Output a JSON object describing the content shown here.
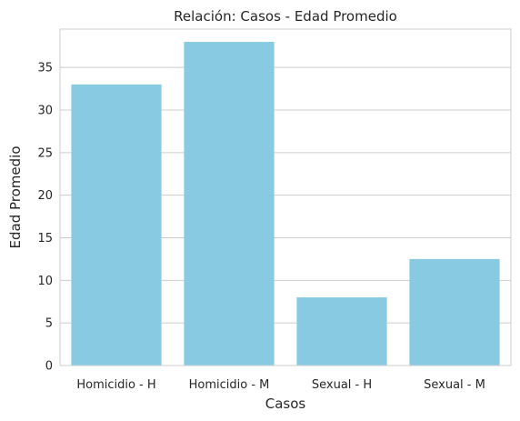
{
  "chart_data": {
    "type": "bar",
    "title": "Relación: Casos - Edad Promedio",
    "xlabel": "Casos",
    "ylabel": "Edad Promedio",
    "categories": [
      "Homicidio - H",
      "Homicidio - M",
      "Sexual - H",
      "Sexual - M"
    ],
    "values": [
      33,
      38,
      8,
      12.5
    ],
    "yticks": [
      0,
      5,
      10,
      15,
      20,
      25,
      30,
      35
    ],
    "ylim": [
      0,
      39.5
    ],
    "grid": "horizontal",
    "bar_color": "#89CAE3",
    "grid_color": "#CCCCCC",
    "text_color": "#262626"
  }
}
